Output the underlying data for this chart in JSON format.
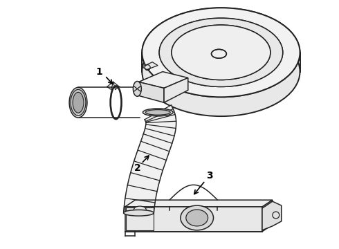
{
  "bg_color": "#ffffff",
  "line_color": "#222222",
  "line_width": 1.1,
  "label_fontsize": 10,
  "label_fontweight": "bold"
}
